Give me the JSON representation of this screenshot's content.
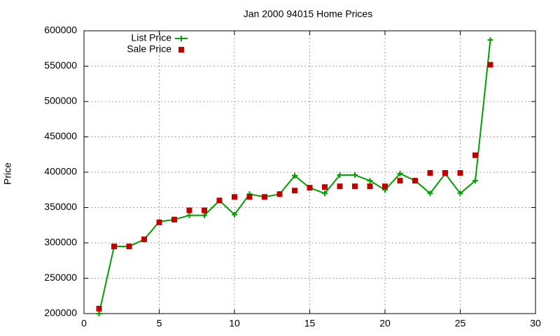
{
  "chart_data": {
    "type": "line",
    "title": "Jan 2000 94015 Home Prices",
    "y_label": "Price",
    "x": [
      1,
      2,
      3,
      4,
      5,
      6,
      7,
      8,
      9,
      10,
      11,
      12,
      13,
      14,
      15,
      16,
      17,
      18,
      19,
      20,
      21,
      22,
      23,
      24,
      25,
      26,
      27
    ],
    "series": [
      {
        "name": "List Price",
        "color": "#00a000",
        "style": "linespoints",
        "values": [
          200000,
          295000,
          295000,
          305000,
          330000,
          333000,
          339000,
          339000,
          360000,
          340000,
          369000,
          365000,
          369000,
          395000,
          378000,
          370000,
          396000,
          396000,
          388000,
          375000,
          398000,
          388000,
          370000,
          398000,
          370000,
          388000,
          587000
        ]
      },
      {
        "name": "Sale Price",
        "color": "#c00000",
        "style": "points",
        "values": [
          207000,
          295000,
          295000,
          305000,
          329000,
          333000,
          346000,
          346000,
          360000,
          365000,
          365000,
          365000,
          369000,
          374000,
          378000,
          379000,
          380000,
          380000,
          380000,
          380000,
          388000,
          388000,
          399000,
          399000,
          399000,
          424000,
          552000
        ]
      }
    ],
    "xlim": [
      0,
      30
    ],
    "xticks": [
      0,
      5,
      10,
      15,
      20,
      25,
      30
    ],
    "ylim": [
      200000,
      600000
    ],
    "yticks": [
      200000,
      250000,
      300000,
      350000,
      400000,
      450000,
      500000,
      550000,
      600000
    ],
    "grid": true,
    "legend": "top-left"
  }
}
